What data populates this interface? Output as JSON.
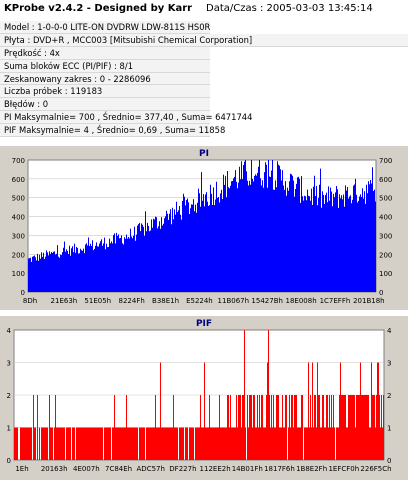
{
  "header": {
    "app_title": "KProbe v2.4.2 - Designed by Karr",
    "date_label": "Data/Czas : 2005-03-03 13:45:14"
  },
  "info_rows": [
    "Model : 1-0-0-0 LITE-ON DVDRW LDW-811S   HS0R",
    "Płyta : DVD+R , MCC003 [Mitsubishi Chemical Corporation]",
    "Prędkość : 4x",
    "Suma bloków ECC (PI/PIF) : 8/1",
    "Zeskanowany zakres : 0 - 2286096",
    "Liczba próbek : 119183",
    "Błędów : 0",
    "PI Maksymalnie= 700 , Średnio= 377,40 , Suma= 6471744",
    "PIF Maksymalnie= 4 , Średnio= 0,69 , Suma= 11858"
  ],
  "charts": {
    "pi": {
      "title": "PI",
      "color": "#0000ff",
      "y_ticks": [
        "700",
        "600",
        "500",
        "400",
        "300",
        "200",
        "100",
        "0"
      ],
      "x_ticks": [
        "8Dh",
        "21E63h",
        "51E05h",
        "8224Fh",
        "B38E1h",
        "E5224h",
        "11B067h",
        "15427Bh",
        "18E008h",
        "1C7EFFh",
        "201B18h"
      ]
    },
    "pif": {
      "title": "PIF",
      "color": "#ff0000",
      "y_ticks": [
        "4",
        "3",
        "2",
        "1",
        "0"
      ],
      "x_ticks": [
        "1Eh",
        "20163h",
        "4E007h",
        "7C84Eh",
        "ADC57h",
        "DF227h",
        "112EE2h",
        "14B01Fh",
        "1817F6h",
        "1B8E2Fh",
        "1EFCF0h",
        "226F5Ch"
      ]
    }
  },
  "chart_data": [
    {
      "type": "area",
      "title": "PI",
      "ylim": [
        0,
        700
      ],
      "x": [
        0.0,
        0.05,
        0.1,
        0.15,
        0.2,
        0.25,
        0.3,
        0.35,
        0.4,
        0.45,
        0.5,
        0.55,
        0.6,
        0.65,
        0.7,
        0.75,
        0.8,
        0.85,
        0.9,
        0.95,
        1.0
      ],
      "values": [
        180,
        205,
        225,
        245,
        265,
        290,
        320,
        370,
        420,
        470,
        520,
        575,
        640,
        670,
        665,
        610,
        555,
        520,
        535,
        565,
        565
      ]
    },
    {
      "type": "bar",
      "title": "PIF",
      "ylim": [
        0,
        4
      ],
      "x": [
        0.0,
        0.2,
        0.4,
        0.5,
        0.6,
        0.75,
        1.0
      ],
      "values": [
        1,
        1,
        1,
        1,
        2,
        2,
        2
      ]
    }
  ]
}
